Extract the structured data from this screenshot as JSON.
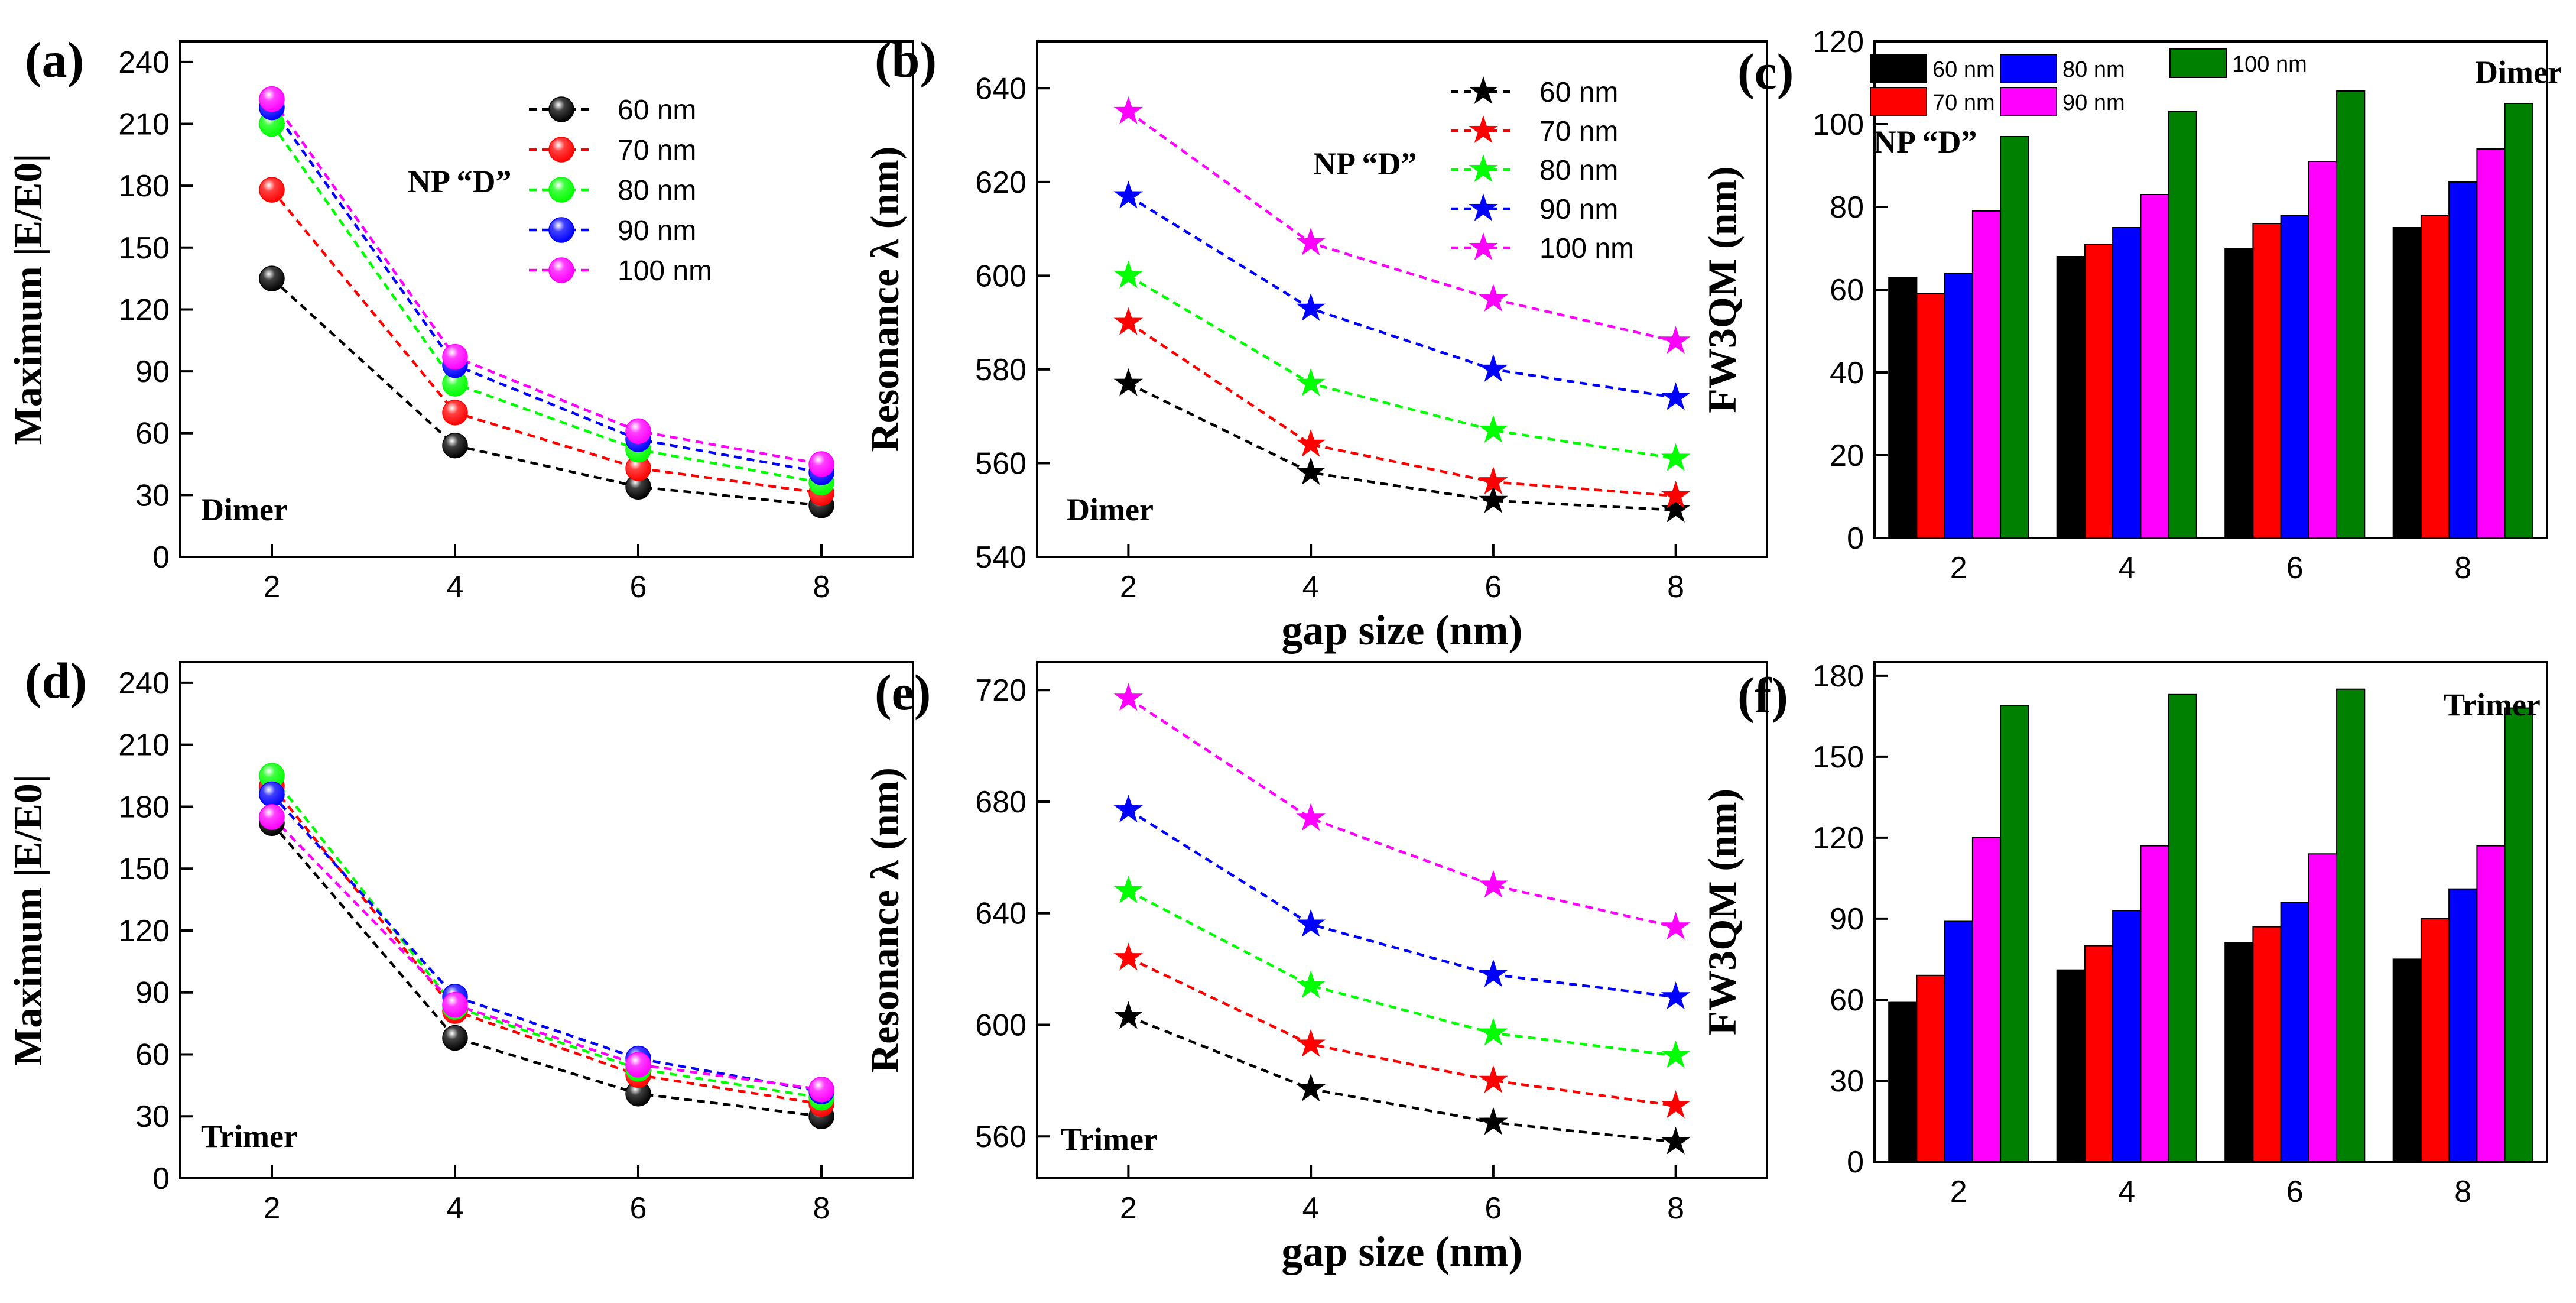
{
  "figure": {
    "common_xlabel": "gap size (nm)"
  },
  "chart_data": [
    {
      "id": "a",
      "type": "line",
      "label": "(a)",
      "marker": "sphere",
      "annotations": [
        "NP “D”",
        "Dimer"
      ],
      "xlabel": "",
      "ylabel": "Maximum |E/E0|",
      "x": [
        2,
        4,
        6,
        8
      ],
      "xlim": [
        1,
        9
      ],
      "xticks": [
        2,
        4,
        6,
        8
      ],
      "ylim": [
        0,
        250
      ],
      "yticks": [
        0,
        30,
        60,
        90,
        120,
        150,
        180,
        210,
        240
      ],
      "legend": "top-right",
      "series": [
        {
          "name": "60 nm",
          "color": "#000000",
          "values": [
            135,
            54,
            34,
            25
          ]
        },
        {
          "name": "70 nm",
          "color": "#ff0000",
          "values": [
            178,
            70,
            43,
            31
          ]
        },
        {
          "name": "80 nm",
          "color": "#00ff00",
          "values": [
            210,
            84,
            52,
            36
          ]
        },
        {
          "name": "90 nm",
          "color": "#0000ff",
          "values": [
            218,
            93,
            57,
            41
          ]
        },
        {
          "name": "100 nm",
          "color": "#ff00ff",
          "values": [
            222,
            97,
            61,
            45
          ]
        }
      ]
    },
    {
      "id": "b",
      "type": "line",
      "label": "(b)",
      "marker": "star",
      "annotations": [
        "NP “D”",
        "Dimer"
      ],
      "xlabel": "gap size (nm)",
      "ylabel": "Resonance λ (nm)",
      "x": [
        2,
        4,
        6,
        8
      ],
      "xlim": [
        1,
        9
      ],
      "xticks": [
        2,
        4,
        6,
        8
      ],
      "ylim": [
        540,
        650
      ],
      "yticks": [
        540,
        560,
        580,
        600,
        620,
        640
      ],
      "legend": "top-right",
      "series": [
        {
          "name": "60 nm",
          "color": "#000000",
          "values": [
            577,
            558,
            552,
            550
          ]
        },
        {
          "name": "70 nm",
          "color": "#ff0000",
          "values": [
            590,
            564,
            556,
            553
          ]
        },
        {
          "name": "80 nm",
          "color": "#00ff00",
          "values": [
            600,
            577,
            567,
            561
          ]
        },
        {
          "name": "90 nm",
          "color": "#0000ff",
          "values": [
            617,
            593,
            580,
            574
          ]
        },
        {
          "name": "100 nm",
          "color": "#ff00ff",
          "values": [
            635,
            607,
            595,
            586
          ]
        }
      ]
    },
    {
      "id": "c",
      "type": "bar",
      "label": "(c)",
      "annotations": [
        "NP “D”",
        "Dimer"
      ],
      "xlabel": "",
      "ylabel": "FW3QM (nm)",
      "categories": [
        "2",
        "4",
        "6",
        "8"
      ],
      "ylim": [
        0,
        120
      ],
      "yticks": [
        0,
        20,
        40,
        60,
        80,
        100,
        120
      ],
      "legend": "top-left",
      "series": [
        {
          "name": "60 nm",
          "color": "#000000",
          "values": [
            63,
            68,
            70,
            75
          ]
        },
        {
          "name": "70 nm",
          "color": "#ff0000",
          "values": [
            59,
            71,
            76,
            78
          ]
        },
        {
          "name": "80 nm",
          "color": "#0000ff",
          "values": [
            64,
            75,
            78,
            86
          ]
        },
        {
          "name": "90 nm",
          "color": "#ff00ff",
          "values": [
            79,
            83,
            91,
            94
          ]
        },
        {
          "name": "100 nm",
          "color": "#008000",
          "values": [
            97,
            103,
            108,
            105
          ]
        }
      ]
    },
    {
      "id": "d",
      "type": "line",
      "label": "(d)",
      "marker": "sphere",
      "annotations": [
        "Trimer"
      ],
      "xlabel": "",
      "ylabel": "Maximum |E/E0|",
      "x": [
        2,
        4,
        6,
        8
      ],
      "xlim": [
        1,
        9
      ],
      "xticks": [
        2,
        4,
        6,
        8
      ],
      "ylim": [
        0,
        250
      ],
      "yticks": [
        0,
        30,
        60,
        90,
        120,
        150,
        180,
        210,
        240
      ],
      "legend": "none",
      "series": [
        {
          "name": "60 nm",
          "color": "#000000",
          "values": [
            172,
            68,
            41,
            30
          ]
        },
        {
          "name": "70 nm",
          "color": "#ff0000",
          "values": [
            190,
            81,
            50,
            36
          ]
        },
        {
          "name": "80 nm",
          "color": "#00ff00",
          "values": [
            195,
            83,
            53,
            39
          ]
        },
        {
          "name": "90 nm",
          "color": "#0000ff",
          "values": [
            186,
            88,
            58,
            42
          ]
        },
        {
          "name": "100 nm",
          "color": "#ff00ff",
          "values": [
            175,
            84,
            55,
            43
          ]
        }
      ]
    },
    {
      "id": "e",
      "type": "line",
      "label": "(e)",
      "marker": "star",
      "annotations": [
        "Trimer"
      ],
      "xlabel": "gap size (nm)",
      "ylabel": "Resonance λ (nm)",
      "x": [
        2,
        4,
        6,
        8
      ],
      "xlim": [
        1,
        9
      ],
      "xticks": [
        2,
        4,
        6,
        8
      ],
      "ylim": [
        545,
        730
      ],
      "yticks": [
        560,
        600,
        640,
        680,
        720
      ],
      "legend": "none",
      "series": [
        {
          "name": "60 nm",
          "color": "#000000",
          "values": [
            603,
            577,
            565,
            558
          ]
        },
        {
          "name": "70 nm",
          "color": "#ff0000",
          "values": [
            624,
            593,
            580,
            571
          ]
        },
        {
          "name": "80 nm",
          "color": "#00ff00",
          "values": [
            648,
            614,
            597,
            589
          ]
        },
        {
          "name": "90 nm",
          "color": "#0000ff",
          "values": [
            677,
            636,
            618,
            610
          ]
        },
        {
          "name": "100 nm",
          "color": "#ff00ff",
          "values": [
            717,
            674,
            650,
            635
          ]
        }
      ]
    },
    {
      "id": "f",
      "type": "bar",
      "label": "(f)",
      "annotations": [
        "Trimer"
      ],
      "xlabel": "",
      "ylabel": "FW3QM (nm)",
      "categories": [
        "2",
        "4",
        "6",
        "8"
      ],
      "ylim": [
        0,
        185
      ],
      "yticks": [
        0,
        30,
        60,
        90,
        120,
        150,
        180
      ],
      "legend": "none",
      "series": [
        {
          "name": "60 nm",
          "color": "#000000",
          "values": [
            59,
            71,
            81,
            75
          ]
        },
        {
          "name": "70 nm",
          "color": "#ff0000",
          "values": [
            69,
            80,
            87,
            90
          ]
        },
        {
          "name": "80 nm",
          "color": "#0000ff",
          "values": [
            89,
            93,
            96,
            101
          ]
        },
        {
          "name": "90 nm",
          "color": "#ff00ff",
          "values": [
            120,
            117,
            114,
            117
          ]
        },
        {
          "name": "100 nm",
          "color": "#008000",
          "values": [
            169,
            173,
            175,
            168
          ]
        }
      ]
    }
  ]
}
